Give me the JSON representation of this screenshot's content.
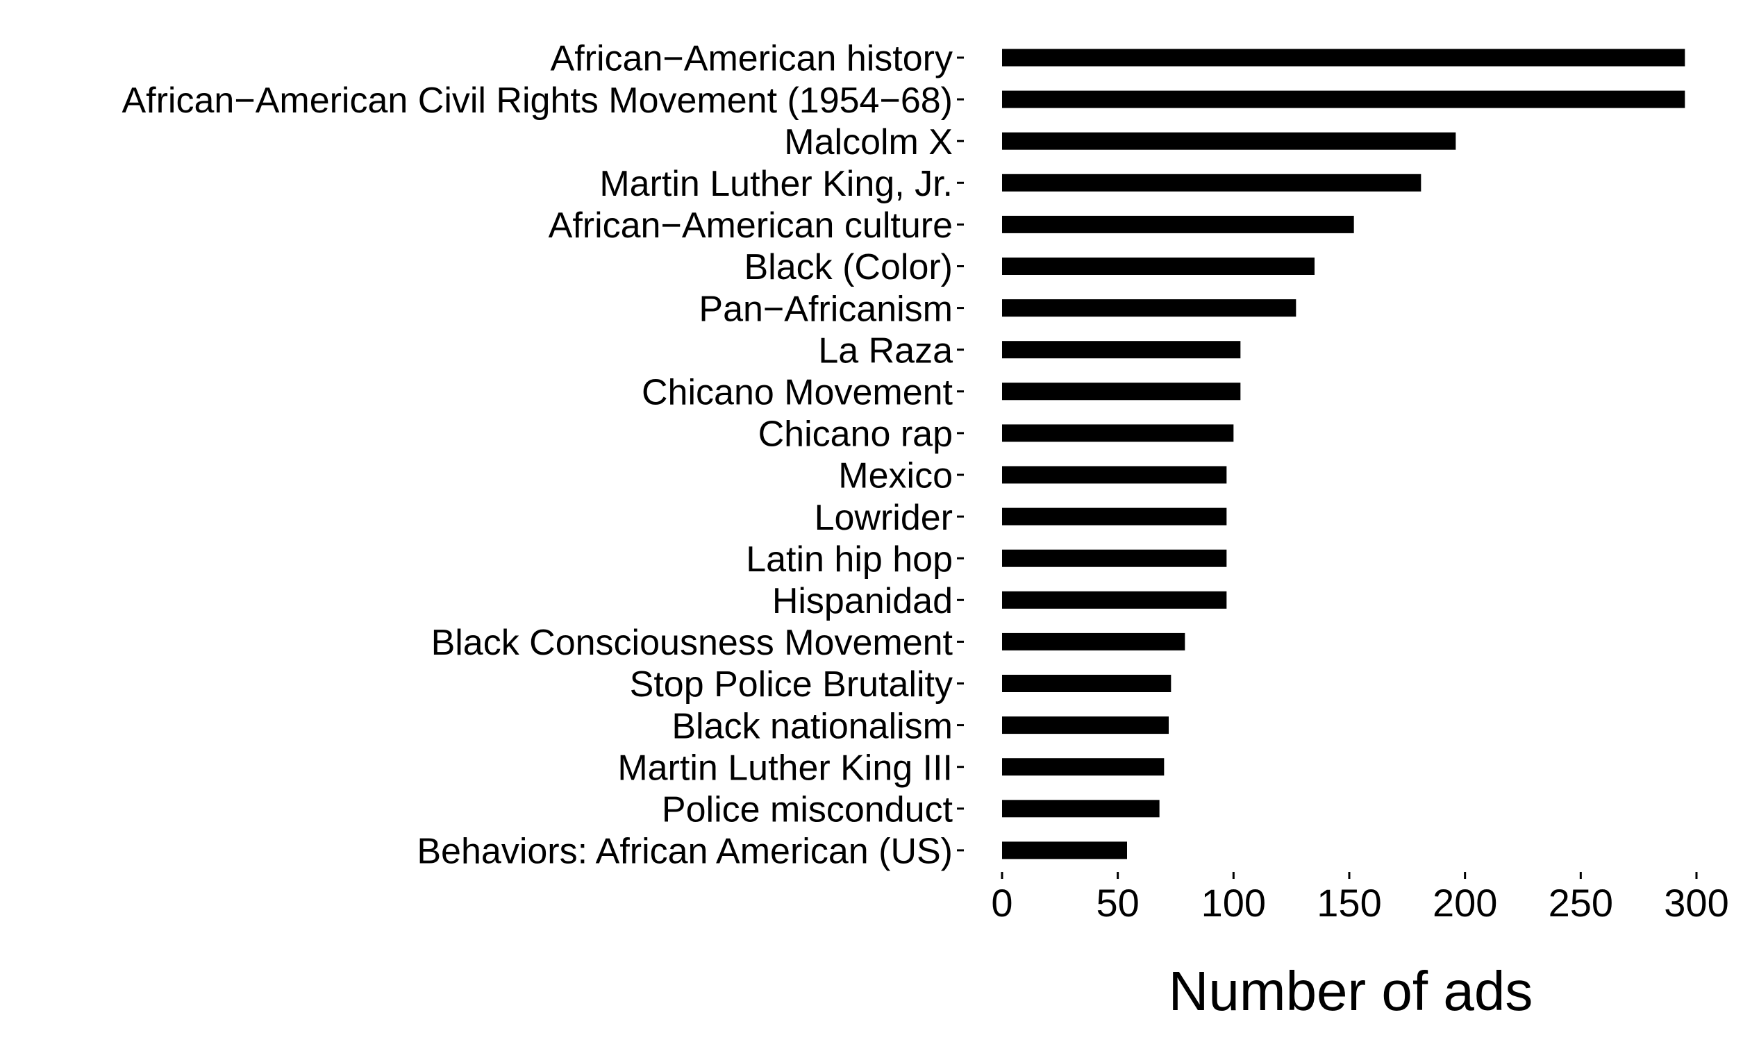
{
  "chart_data": {
    "type": "bar",
    "orientation": "horizontal",
    "categories": [
      "African−American history",
      "African−American Civil Rights Movement (1954−68)",
      "Malcolm X",
      "Martin Luther King, Jr.",
      "African−American culture",
      "Black (Color)",
      "Pan−Africanism",
      "La Raza",
      "Chicano Movement",
      "Chicano rap",
      "Mexico",
      "Lowrider",
      "Latin hip hop",
      "Hispanidad",
      "Black Consciousness Movement",
      "Stop Police Brutality",
      "Black nationalism",
      "Martin Luther King III",
      "Police misconduct",
      "Behaviors: African American (US)"
    ],
    "values": [
      295,
      295,
      196,
      181,
      152,
      135,
      127,
      103,
      103,
      100,
      97,
      97,
      97,
      97,
      79,
      73,
      72,
      70,
      68,
      54
    ],
    "xlabel": "Number of ads",
    "ylabel": "",
    "title": "",
    "xlim": [
      0,
      300
    ],
    "xticks": [
      "0",
      "50",
      "100",
      "150",
      "200",
      "250",
      "300"
    ],
    "grid": false,
    "legend": "none",
    "bar_color": "#000000",
    "text_color": "#000000",
    "background": "#ffffff"
  }
}
